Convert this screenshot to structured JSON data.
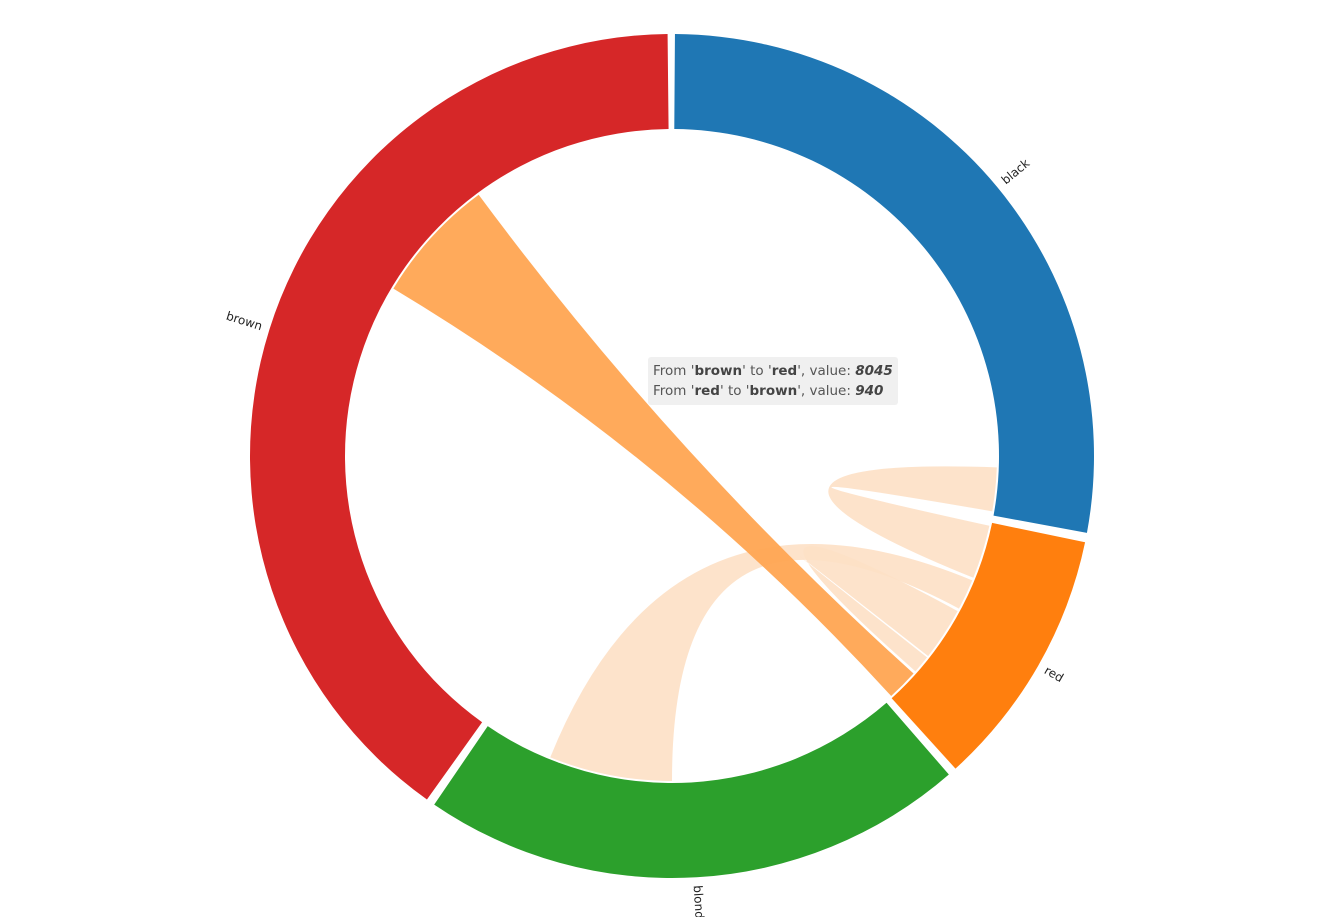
{
  "chart_data": {
    "type": "chord",
    "groups": [
      {
        "name": "black",
        "color": "#1f77b4"
      },
      {
        "name": "red",
        "color": "#ff7f0e"
      },
      {
        "name": "blonde",
        "color": "#2ca02c"
      },
      {
        "name": "brown",
        "color": "#d62728"
      }
    ],
    "highlighted_group": "red",
    "highlight_colors": {
      "active": "#ffa552",
      "faded": "#fde0c5"
    },
    "tooltip": [
      {
        "from": "brown",
        "to": "red",
        "value": 8045
      },
      {
        "from": "red",
        "to": "brown",
        "value": 940
      }
    ]
  },
  "tooltip_text": {
    "line1": {
      "prefix": "From '",
      "from": "brown",
      "mid": "' to '",
      "to": "red",
      "suffix": "', value: ",
      "value": "8045"
    },
    "line2": {
      "prefix": "From '",
      "from": "red",
      "mid": "' to '",
      "to": "brown",
      "suffix": "', value: ",
      "value": "940"
    }
  }
}
